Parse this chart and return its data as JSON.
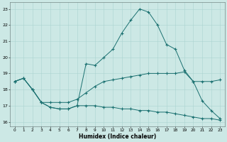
{
  "xlabel": "Humidex (Indice chaleur)",
  "x_ticks": [
    0,
    1,
    2,
    3,
    4,
    5,
    6,
    7,
    8,
    9,
    10,
    11,
    12,
    13,
    14,
    15,
    16,
    17,
    18,
    19,
    20,
    21,
    22,
    23
  ],
  "ylim": [
    15.7,
    23.4
  ],
  "xlim": [
    -0.5,
    23.5
  ],
  "yticks": [
    16,
    17,
    18,
    19,
    20,
    21,
    22,
    23
  ],
  "bg_color": "#cce8e5",
  "line_color": "#1a7070",
  "grid_color": "#aad4d0",
  "line1": [
    18.5,
    18.7,
    18.0,
    17.2,
    16.9,
    16.8,
    16.8,
    17.0,
    19.6,
    19.5,
    20.0,
    20.5,
    21.5,
    22.3,
    23.0,
    22.8,
    22.0,
    20.8,
    20.5,
    19.2,
    18.5,
    17.3,
    16.7,
    16.2
  ],
  "line2": [
    18.5,
    18.7,
    18.0,
    17.2,
    17.2,
    17.2,
    17.2,
    17.4,
    17.8,
    18.2,
    18.5,
    18.6,
    18.7,
    18.8,
    18.9,
    19.0,
    19.0,
    19.0,
    19.0,
    19.1,
    18.5,
    18.5,
    18.5,
    18.6
  ],
  "line3": [
    18.5,
    18.7,
    18.0,
    17.2,
    16.9,
    16.8,
    16.8,
    17.0,
    17.0,
    17.0,
    16.9,
    16.9,
    16.8,
    16.8,
    16.7,
    16.7,
    16.6,
    16.6,
    16.5,
    16.4,
    16.3,
    16.2,
    16.2,
    16.1
  ]
}
